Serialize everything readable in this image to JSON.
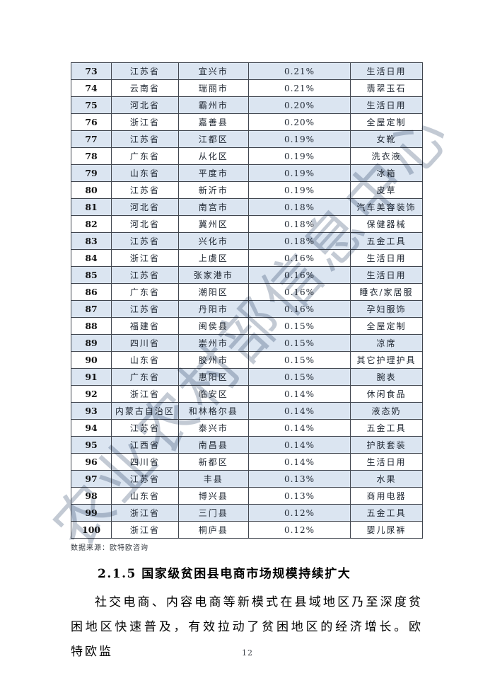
{
  "watermark": {
    "text": "农业农村部信息中心",
    "color": "#c3cad4"
  },
  "table": {
    "columns": [
      "rank",
      "province",
      "city",
      "share",
      "category"
    ],
    "stripe_color": "#dbe5f1",
    "rows": [
      [
        "73",
        "江苏省",
        "宜兴市",
        "0.21%",
        "生活日用"
      ],
      [
        "74",
        "云南省",
        "瑞丽市",
        "0.21%",
        "翡翠玉石"
      ],
      [
        "75",
        "河北省",
        "霸州市",
        "0.20%",
        "生活日用"
      ],
      [
        "76",
        "浙江省",
        "嘉善县",
        "0.20%",
        "全屋定制"
      ],
      [
        "77",
        "江苏省",
        "江都区",
        "0.19%",
        "女靴"
      ],
      [
        "78",
        "广东省",
        "从化区",
        "0.19%",
        "洗衣液"
      ],
      [
        "79",
        "山东省",
        "平度市",
        "0.19%",
        "冰箱"
      ],
      [
        "80",
        "江苏省",
        "新沂市",
        "0.19%",
        "皮草"
      ],
      [
        "81",
        "河北省",
        "南宫市",
        "0.18%",
        "汽车美容装饰"
      ],
      [
        "82",
        "河北省",
        "冀州区",
        "0.18%",
        "保健器械"
      ],
      [
        "83",
        "江苏省",
        "兴化市",
        "0.18%",
        "五金工具"
      ],
      [
        "84",
        "浙江省",
        "上虞区",
        "0.16%",
        "生活日用"
      ],
      [
        "85",
        "江苏省",
        "张家港市",
        "0.16%",
        "生活日用"
      ],
      [
        "86",
        "广东省",
        "潮阳区",
        "0.16%",
        "睡衣/家居服"
      ],
      [
        "87",
        "江苏省",
        "丹阳市",
        "0.16%",
        "孕妇服饰"
      ],
      [
        "88",
        "福建省",
        "闽侯县",
        "0.15%",
        "全屋定制"
      ],
      [
        "89",
        "四川省",
        "崇州市",
        "0.15%",
        "凉席"
      ],
      [
        "90",
        "山东省",
        "胶州市",
        "0.15%",
        "其它护理护具"
      ],
      [
        "91",
        "广东省",
        "惠阳区",
        "0.15%",
        "腕表"
      ],
      [
        "92",
        "浙江省",
        "临安区",
        "0.14%",
        "休闲食品"
      ],
      [
        "93",
        "内蒙古自治区",
        "和林格尔县",
        "0.14%",
        "液态奶"
      ],
      [
        "94",
        "江苏省",
        "泰兴市",
        "0.14%",
        "五金工具"
      ],
      [
        "95",
        "江西省",
        "南昌县",
        "0.14%",
        "护肤套装"
      ],
      [
        "96",
        "四川省",
        "新都区",
        "0.14%",
        "生活日用"
      ],
      [
        "97",
        "江苏省",
        "丰县",
        "0.13%",
        "水果"
      ],
      [
        "98",
        "山东省",
        "博兴县",
        "0.13%",
        "商用电器"
      ],
      [
        "99",
        "浙江省",
        "三门县",
        "0.12%",
        "五金工具"
      ],
      [
        "100",
        "浙江省",
        "桐庐县",
        "0.12%",
        "婴儿尿裤"
      ]
    ]
  },
  "source_note": "数据来源：欧特欧咨询",
  "section": {
    "heading": "2.1.5 国家级贫困县电商市场规模持续扩大"
  },
  "paragraph": "社交电商、内容电商等新模式在县域地区乃至深度贫困地区快速普及，有效拉动了贫困地区的经济增长。欧特欧监",
  "page_number": "12"
}
